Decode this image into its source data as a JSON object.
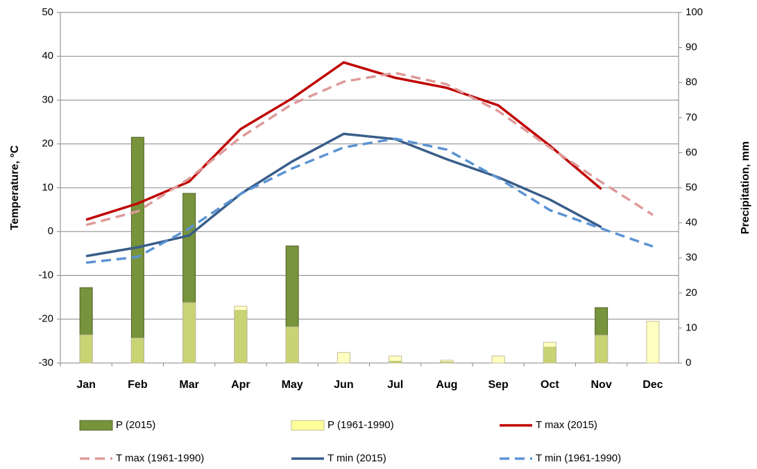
{
  "chart_data": {
    "type": "combo",
    "y_label": "Temperature, °C",
    "y2_label": "Precipitation, mm",
    "categories": [
      "Jan",
      "Feb",
      "Mar",
      "Apr",
      "May",
      "Jun",
      "Jul",
      "Aug",
      "Sep",
      "Oct",
      "Nov",
      "Dec"
    ],
    "ylim": [
      -30,
      50
    ],
    "yticks": [
      -30,
      -20,
      -10,
      0,
      10,
      20,
      30,
      40,
      50
    ],
    "y2lim": [
      0,
      100
    ],
    "y2ticks": [
      0,
      10,
      20,
      30,
      40,
      50,
      60,
      70,
      80,
      90,
      100
    ],
    "grid": true,
    "legend": "bottom",
    "series": [
      {
        "name": "P (2015)",
        "type": "bar",
        "axis": "y2",
        "color": "#77933c",
        "values": [
          21.5,
          64.4,
          48.4,
          15,
          33.4,
          0,
          0.5,
          0.3,
          0,
          4.5,
          15.8,
          null
        ]
      },
      {
        "name": "P (1961-1990)",
        "type": "bar",
        "axis": "y2",
        "color": "#ffff99",
        "values": [
          8,
          7.1,
          17.2,
          16.2,
          10.3,
          3,
          2,
          0.8,
          2,
          5.9,
          7.9,
          11.9
        ]
      },
      {
        "name": "T max (2015)",
        "type": "line",
        "color": "#c00000",
        "dashed": false,
        "values": [
          2.7,
          6.4,
          11.4,
          23.4,
          30.4,
          38.6,
          35.1,
          32.8,
          28.8,
          19.6,
          9.7,
          null
        ]
      },
      {
        "name": "T max (1961-1990)",
        "type": "line",
        "color": "#dd9a99",
        "dashed": true,
        "values": [
          1.5,
          4.6,
          12.1,
          21.5,
          29.1,
          34.2,
          36.2,
          33.6,
          27.5,
          19.2,
          11.3,
          3.8
        ]
      },
      {
        "name": "T min (2015)",
        "type": "line",
        "color": "#385d8a",
        "dashed": false,
        "values": [
          -5.6,
          -3.6,
          -0.9,
          8.6,
          16,
          22.3,
          21.1,
          16.5,
          12.4,
          7.3,
          1,
          null
        ]
      },
      {
        "name": "T min (1961-1990)",
        "type": "line",
        "color": "#5b93d3",
        "dashed": true,
        "values": [
          -7.1,
          -5.8,
          0.7,
          8.6,
          14.4,
          19.2,
          21.2,
          18.7,
          12.2,
          4.9,
          0.7,
          -3.4
        ]
      }
    ]
  }
}
